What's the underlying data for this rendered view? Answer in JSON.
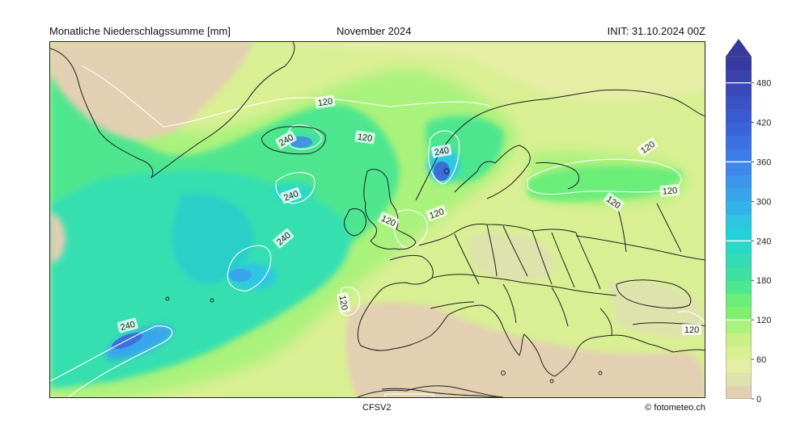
{
  "header": {
    "title_left": "Monatliche Niederschlagssumme [mm]",
    "title_center": "November 2024",
    "title_right": "INIT: 31.10.2024 00Z"
  },
  "footer": {
    "model": "CFSV2",
    "credit": "© fotometeo.ch"
  },
  "colorbar": {
    "unit": "mm",
    "max": 520,
    "extend": "max",
    "bins": [
      {
        "from": 0,
        "to": 20,
        "color": "#e3cfb2"
      },
      {
        "from": 20,
        "to": 40,
        "color": "#dee2ad"
      },
      {
        "from": 40,
        "to": 60,
        "color": "#e6eea6"
      },
      {
        "from": 60,
        "to": 80,
        "color": "#d9ef93"
      },
      {
        "from": 80,
        "to": 100,
        "color": "#c9ef86"
      },
      {
        "from": 100,
        "to": 120,
        "color": "#a9f27c"
      },
      {
        "from": 120,
        "to": 140,
        "color": "#7ef06d"
      },
      {
        "from": 140,
        "to": 160,
        "color": "#6aed79"
      },
      {
        "from": 160,
        "to": 180,
        "color": "#4ee68e"
      },
      {
        "from": 180,
        "to": 200,
        "color": "#3fe0a2"
      },
      {
        "from": 200,
        "to": 220,
        "color": "#34dcb6"
      },
      {
        "from": 220,
        "to": 240,
        "color": "#2ad8c6"
      },
      {
        "from": 240,
        "to": 260,
        "color": "#22d2d8"
      },
      {
        "from": 260,
        "to": 280,
        "color": "#2ec6e2"
      },
      {
        "from": 280,
        "to": 300,
        "color": "#33b4e6"
      },
      {
        "from": 300,
        "to": 320,
        "color": "#37a5ec"
      },
      {
        "from": 320,
        "to": 340,
        "color": "#3b96ec"
      },
      {
        "from": 340,
        "to": 360,
        "color": "#3d88ea"
      },
      {
        "from": 360,
        "to": 380,
        "color": "#3d7ce6"
      },
      {
        "from": 380,
        "to": 400,
        "color": "#3c6fe0"
      },
      {
        "from": 400,
        "to": 420,
        "color": "#3b64d8"
      },
      {
        "from": 420,
        "to": 440,
        "color": "#3a5ad0"
      },
      {
        "from": 440,
        "to": 460,
        "color": "#3a52c4"
      },
      {
        "from": 460,
        "to": 480,
        "color": "#3949b8"
      },
      {
        "from": 480,
        "to": 500,
        "color": "#3841ac"
      },
      {
        "from": 500,
        "to": 520,
        "color": "#373aa2"
      }
    ],
    "arrow_color": "#37399c",
    "ticks": [
      0,
      60,
      120,
      180,
      240,
      300,
      360,
      420,
      480
    ],
    "white_lines": [
      120,
      240,
      360,
      480
    ]
  },
  "map": {
    "contour_labels": [
      "120",
      "240"
    ],
    "ocean_color": "#36dfb0",
    "deep_ocean_color": "#2bc2d8",
    "max_precip_color": "#3a7be3",
    "land_dry_color": "#e3cfb2",
    "land_wet_color": "#d9ef93",
    "border_color": "#1f1f1f",
    "contour_color": "#ffffff"
  }
}
